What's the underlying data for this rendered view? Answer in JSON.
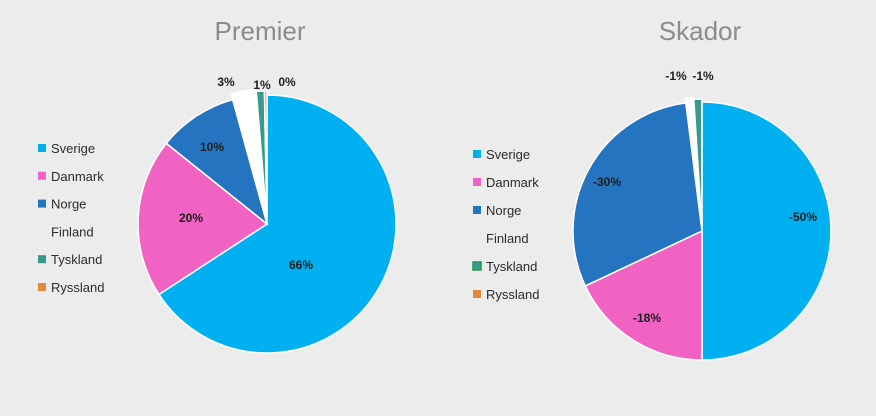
{
  "chart_data": [
    {
      "type": "pie",
      "title": "Premier",
      "categories": [
        "Sverige",
        "Danmark",
        "Norge",
        "Finland",
        "Tyskland",
        "Ryssland"
      ],
      "values": [
        66,
        20,
        10,
        3,
        1,
        0.3
      ],
      "labels": [
        "66%",
        "20%",
        "10%",
        "3%",
        "1%",
        "0%"
      ],
      "colors": [
        "#00b0f0",
        "#f063c2",
        "#2474c0",
        "#ffffff",
        "#3a9a8a",
        "#e08a3a"
      ],
      "legend": "left"
    },
    {
      "type": "pie",
      "title": "Skador",
      "categories": [
        "Sverige",
        "Danmark",
        "Norge",
        "Finland",
        "Tyskland",
        "Ryssland"
      ],
      "values": [
        -50,
        -18,
        -30,
        -1,
        -1,
        0
      ],
      "labels": [
        "-50%",
        "-18%",
        "-30%",
        "-1%",
        "-1%",
        ""
      ],
      "colors": [
        "#00b0f0",
        "#f063c2",
        "#2474c0",
        "#ffffff",
        "#3a9a8a",
        "#e08a3a"
      ],
      "legend": "left"
    }
  ]
}
